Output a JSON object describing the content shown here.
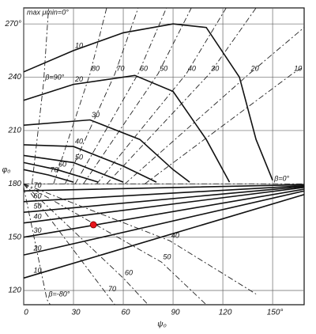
{
  "chart_data": {
    "type": "line",
    "annotation": "max μmin=0°",
    "x_label": "ψ₀",
    "y_label": "φ₀",
    "xlim": [
      0,
      169
    ],
    "ylim": [
      112,
      279
    ],
    "xticks": [
      0,
      30,
      60,
      90,
      120,
      {
        "value": 150,
        "label": "150°"
      }
    ],
    "yticks": [
      120,
      150,
      180,
      210,
      240,
      {
        "value": 270,
        "label": "270°"
      }
    ],
    "grid": true,
    "series": [
      {
        "name": "10",
        "color": "#111111",
        "dash": false,
        "x": [
          0,
          30,
          60,
          90,
          110,
          130,
          140,
          150
        ],
        "y": [
          243,
          255,
          265,
          270,
          268,
          240,
          205,
          182
        ]
      },
      {
        "name": "20",
        "color": "#111111",
        "dash": false,
        "x": [
          0,
          30,
          67,
          90,
          110,
          124
        ],
        "y": [
          227,
          236,
          241,
          232,
          205,
          181
        ]
      },
      {
        "name": "30",
        "color": "#111111",
        "dash": false,
        "x": [
          0,
          40,
          70,
          90,
          100
        ],
        "y": [
          213,
          216,
          205,
          188,
          181
        ]
      },
      {
        "name": "40",
        "color": "#111111",
        "dash": false,
        "x": [
          0,
          30,
          60,
          80
        ],
        "y": [
          202,
          201,
          190,
          181
        ]
      },
      {
        "name": "50",
        "color": "#111111",
        "dash": false,
        "x": [
          0,
          30,
          60
        ],
        "y": [
          196,
          192,
          181
        ]
      },
      {
        "name": "60",
        "color": "#111111",
        "dash": false,
        "x": [
          0,
          20,
          45
        ],
        "y": [
          192,
          188,
          181
        ]
      },
      {
        "name": "70",
        "color": "#111111",
        "dash": false,
        "x": [
          0,
          15,
          30
        ],
        "y": [
          188,
          185,
          181
        ]
      },
      {
        "name": "70",
        "color": "#111111",
        "dash": false,
        "x": [
          0,
          5,
          169
        ],
        "y": [
          176,
          176.2,
          179.5
        ]
      },
      {
        "name": "60",
        "color": "#111111",
        "dash": false,
        "x": [
          0,
          5,
          169
        ],
        "y": [
          170,
          170.3,
          179
        ]
      },
      {
        "name": "50",
        "color": "#111111",
        "dash": false,
        "x": [
          0,
          5,
          169
        ],
        "y": [
          164,
          164.4,
          178.5
        ]
      },
      {
        "name": "40",
        "color": "#111111",
        "dash": false,
        "x": [
          0,
          5,
          169
        ],
        "y": [
          158,
          158.6,
          178
        ]
      },
      {
        "name": "30",
        "color": "#111111",
        "dash": false,
        "x": [
          0,
          5,
          169
        ],
        "y": [
          150,
          150.8,
          177
        ]
      },
      {
        "name": "20",
        "color": "#111111",
        "dash": false,
        "x": [
          0,
          5,
          169
        ],
        "y": [
          140,
          141,
          176
        ]
      },
      {
        "name": "10",
        "color": "#111111",
        "dash": false,
        "x": [
          0,
          5,
          169
        ],
        "y": [
          127,
          128.4,
          174
        ]
      },
      {
        "name": "β=90°",
        "color": "#222222",
        "dash": true,
        "x": [
          5,
          12,
          15
        ],
        "y": [
          180,
          237,
          279
        ]
      },
      {
        "name": "80",
        "color": "#222222",
        "dash": true,
        "x": [
          18,
          40,
          50
        ],
        "y": [
          180,
          242,
          279
        ]
      },
      {
        "name": "70",
        "color": "#222222",
        "dash": true,
        "x": [
          25,
          55,
          69
        ],
        "y": [
          180,
          242,
          279
        ]
      },
      {
        "name": "60",
        "color": "#222222",
        "dash": true,
        "x": [
          31,
          69,
          86
        ],
        "y": [
          180,
          242,
          279
        ]
      },
      {
        "name": "50",
        "color": "#222222",
        "dash": true,
        "x": [
          36,
          81,
          101
        ],
        "y": [
          180,
          242,
          279
        ]
      },
      {
        "name": "40",
        "color": "#222222",
        "dash": true,
        "x": [
          44,
          98,
          122
        ],
        "y": [
          180,
          242,
          279
        ]
      },
      {
        "name": "30",
        "color": "#222222",
        "dash": true,
        "x": [
          50,
          112,
          140
        ],
        "y": [
          180,
          242,
          279
        ]
      },
      {
        "name": "20",
        "color": "#222222",
        "dash": true,
        "x": [
          61,
          136,
          169
        ],
        "y": [
          180,
          242,
          268
        ]
      },
      {
        "name": "10",
        "color": "#222222",
        "dash": true,
        "x": [
          73,
          162,
          169
        ],
        "y": [
          180,
          242,
          246
        ]
      },
      {
        "name": "β=0°",
        "color": "#222222",
        "dash": true,
        "x": [
          0,
          150,
          169
        ],
        "y": [
          180,
          180,
          180
        ]
      },
      {
        "name": "40",
        "color": "#222222",
        "dash": true,
        "x": [
          0,
          88,
          140
        ],
        "y": [
          180,
          148,
          118
        ]
      },
      {
        "name": "50",
        "color": "#222222",
        "dash": true,
        "x": [
          0,
          83,
          110
        ],
        "y": [
          180,
          136,
          112
        ]
      },
      {
        "name": "60",
        "color": "#222222",
        "dash": true,
        "x": [
          0,
          60,
          75
        ],
        "y": [
          180,
          127,
          112
        ]
      },
      {
        "name": "70",
        "color": "#222222",
        "dash": true,
        "x": [
          0,
          50,
          55
        ],
        "y": [
          180,
          118,
          112
        ]
      },
      {
        "name": "β=-80°",
        "color": "#222222",
        "dash": true,
        "x": [
          0,
          14,
          16
        ],
        "y": [
          178,
          115,
          112
        ]
      }
    ],
    "points": [
      {
        "x": 42,
        "y": 157,
        "color": "#e8141b"
      }
    ]
  }
}
